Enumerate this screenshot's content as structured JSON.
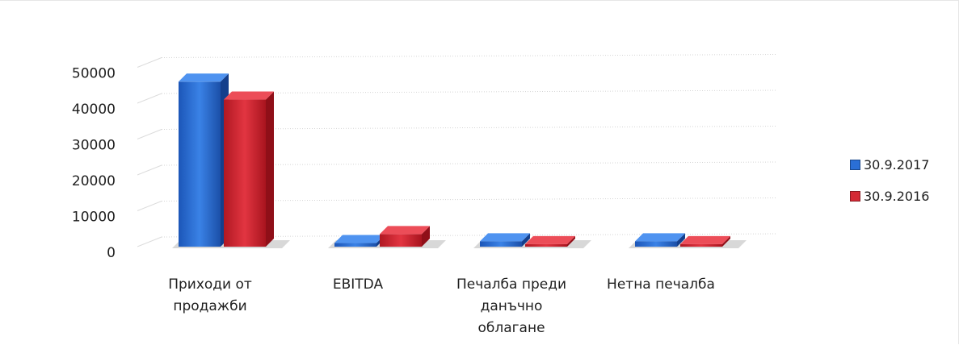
{
  "chart_data": {
    "type": "bar",
    "categories": [
      [
        "Приходи от",
        "продажби"
      ],
      [
        "EBITDA"
      ],
      [
        "Печалба преди",
        "данъчно",
        "облагане"
      ],
      [
        "Нетна печалба"
      ]
    ],
    "series": [
      {
        "name": "30.9.2017",
        "color": "#2a6fd6",
        "values": [
          46000,
          1000,
          1500,
          1500
        ]
      },
      {
        "name": "30.9.2016",
        "color": "#d42a35",
        "values": [
          41000,
          3500,
          700,
          700
        ]
      }
    ],
    "yticks": [
      0,
      10000,
      20000,
      30000,
      40000,
      50000
    ],
    "ytick_labels": [
      "0",
      "10000",
      "20000",
      "30000",
      "40000",
      "50000"
    ],
    "ylim": [
      0,
      50000
    ],
    "grid": true,
    "legend": "right",
    "style": "3d-clustered-column",
    "title": "",
    "xlabel": "",
    "ylabel": ""
  }
}
